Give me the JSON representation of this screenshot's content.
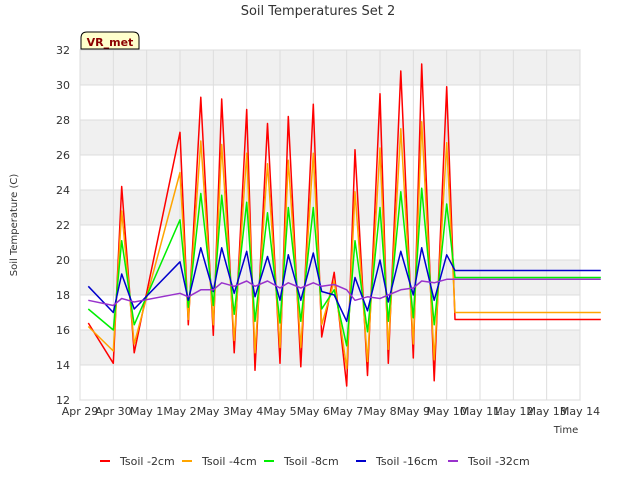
{
  "chart_data": {
    "type": "line",
    "title": "Soil Temperatures Set 2",
    "xlabel": "Time",
    "ylabel": "Soil Temperature (C)",
    "ylim": [
      12,
      32
    ],
    "xlim": [
      "2023-04-29",
      "2023-05-14"
    ],
    "grid": true,
    "legend_position": "bottom",
    "badge": "VR_met",
    "x_tick_labels": [
      "Apr 29",
      "Apr 30",
      "May 1",
      "May 2",
      "May 3",
      "May 4",
      "May 5",
      "May 6",
      "May 7",
      "May 8",
      "May 9",
      "May 10",
      "May 11",
      "May 12",
      "May 13",
      "May 14"
    ],
    "y_tick_labels": [
      "12",
      "14",
      "16",
      "18",
      "20",
      "22",
      "24",
      "26",
      "28",
      "30",
      "32"
    ],
    "x": [
      "Apr 29 06:00",
      "Apr 30 00:00",
      "Apr 30 06:00",
      "Apr 30 15:00",
      "May 1 00:00",
      "May 1 06:00",
      "May 1 15:00",
      "May 2 00:00",
      "May 2 06:00",
      "May 2 15:00",
      "May 3 00:00",
      "May 3 06:00",
      "May 3 15:00",
      "May 4 00:00",
      "May 4 06:00",
      "May 4 15:00",
      "May 5 00:00",
      "May 5 06:00",
      "May 5 15:00",
      "May 6 00:00",
      "May 6 06:00",
      "May 6 15:00",
      "May 7 00:00",
      "May 7 06:00",
      "May 7 15:00",
      "May 8 00:00",
      "May 8 06:00",
      "May 8 15:00",
      "May 9 00:00",
      "May 9 06:00",
      "May 9 15:00",
      "May 10 00:00",
      "May 10 06:00",
      "May 10 15:00",
      "May 11 00:00",
      "May 11 06:00",
      "May 11 15:00",
      "May 12 00:00",
      "May 12 06:00",
      "May 12 15:00",
      "May 13 00:00",
      "May 13 06:00",
      "May 13 15:00"
    ],
    "series": [
      {
        "name": "Tsoil -2cm",
        "color": "#ff0000",
        "values": [
          16.4,
          14.1,
          24.2,
          14.7,
          27.3,
          16.3,
          29.3,
          15.7,
          29.2,
          14.7,
          28.6,
          13.7,
          27.8,
          14.1,
          28.2,
          13.9,
          28.9,
          15.6,
          19.3,
          12.8,
          26.3,
          13.4,
          29.5,
          14.1,
          30.8,
          14.4,
          31.2,
          13.1,
          29.9,
          16.6,
          16.6,
          16.6,
          16.6,
          16.6,
          16.6,
          16.6,
          16.6,
          16.6,
          16.6,
          16.6,
          16.6,
          16.6,
          16.6
        ]
      },
      {
        "name": "Tsoil -4cm",
        "color": "#ffa500",
        "values": [
          16.2,
          14.8,
          22.8,
          15.2,
          25.0,
          16.6,
          26.8,
          16.3,
          26.6,
          15.4,
          26.1,
          14.7,
          25.5,
          15.0,
          25.7,
          15.0,
          26.1,
          16.3,
          18.8,
          13.8,
          23.9,
          14.2,
          26.4,
          14.9,
          27.5,
          15.2,
          27.9,
          14.3,
          26.7,
          17.0,
          17.0,
          17.0,
          17.0,
          17.0,
          17.0,
          17.0,
          17.0,
          17.0,
          17.0,
          17.0,
          17.0,
          17.0,
          17.0
        ]
      },
      {
        "name": "Tsoil -8cm",
        "color": "#00ee00",
        "values": [
          17.2,
          16.0,
          21.1,
          16.3,
          22.3,
          17.3,
          23.8,
          17.4,
          23.7,
          16.9,
          23.3,
          16.5,
          22.7,
          16.4,
          23.0,
          16.5,
          23.0,
          17.2,
          18.3,
          15.1,
          21.1,
          15.9,
          23.0,
          16.5,
          23.9,
          16.7,
          24.1,
          16.3,
          23.2,
          19.0,
          19.0,
          19.0,
          19.0,
          19.0,
          19.0,
          19.0,
          19.0,
          19.0,
          19.0,
          19.0,
          19.0,
          19.0,
          19.0
        ]
      },
      {
        "name": "Tsoil -16cm",
        "color": "#0000cc",
        "values": [
          18.5,
          17.0,
          19.2,
          17.2,
          19.9,
          17.7,
          20.7,
          18.2,
          20.7,
          18.1,
          20.5,
          17.9,
          20.2,
          17.7,
          20.3,
          17.7,
          20.4,
          18.2,
          18.0,
          16.5,
          19.0,
          17.1,
          20.0,
          17.6,
          20.5,
          18.0,
          20.7,
          17.7,
          20.3,
          19.4,
          19.4,
          19.4,
          19.4,
          19.4,
          19.4,
          19.4,
          19.4,
          19.4,
          19.4,
          19.4,
          19.4,
          19.4,
          19.4
        ]
      },
      {
        "name": "Tsoil -32cm",
        "color": "#9932cc",
        "values": [
          17.7,
          17.4,
          17.8,
          17.6,
          18.1,
          17.9,
          18.3,
          18.3,
          18.7,
          18.5,
          18.8,
          18.5,
          18.8,
          18.4,
          18.7,
          18.4,
          18.7,
          18.5,
          18.6,
          18.3,
          17.7,
          17.9,
          17.8,
          18.0,
          18.3,
          18.4,
          18.8,
          18.7,
          18.9,
          18.9,
          18.9,
          18.9,
          18.9,
          18.9,
          18.9,
          18.9,
          18.9,
          18.9,
          18.9,
          18.9,
          18.9,
          18.9,
          18.9
        ]
      }
    ]
  }
}
